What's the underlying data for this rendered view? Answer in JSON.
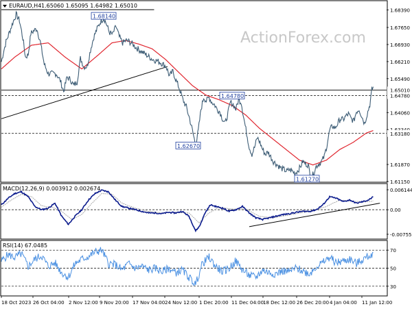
{
  "header": {
    "symbol_label": "EURAUD,H4",
    "ohlc_text": "1.65060 1.65095 1.64982 1.65010"
  },
  "watermark": "ActionForex.com",
  "colors": {
    "price": "#3b5b74",
    "ema": "#e0262f",
    "trendline": "#000000",
    "macd": "#0a1a8c",
    "signal": "#a8a8a8",
    "rsi": "#4a90e2",
    "label_box_border": "#1f3f9f",
    "label_text": "#1f3f9f",
    "grid": "#000000",
    "axis_text": "#000000"
  },
  "chart_data": [
    {
      "type": "line",
      "name": "price",
      "title": "EURAUD,H4",
      "y_ticks": [
        "1.68390",
        "1.67650",
        "1.66930",
        "1.66210",
        "1.65490",
        "1.64060",
        "1.63340",
        "1.61870",
        "1.61150"
      ],
      "ylim": [
        1.6115,
        1.6875
      ],
      "x_ticks": [
        "18 Oct 2023",
        "26 Oct 04:00",
        "2 Nov 12:00",
        "9 Nov 20:00",
        "17 Nov 04:00",
        "24 Nov 12:00",
        "1 Dec 20:00",
        "11 Dec 04:00",
        "18 Dec 12:00",
        "26 Dec 20:00",
        "4 Jan 04:00",
        "11 Jan 12:00"
      ],
      "price_labels": [
        {
          "text": "1.68140",
          "value": 1.6814
        },
        {
          "text": "1.64780",
          "value": 1.6478
        },
        {
          "text": "1.62670",
          "value": 1.6267
        },
        {
          "text": "1.61270",
          "value": 1.6127
        }
      ],
      "horizontal_levels": [
        {
          "text": "1.65010",
          "value": 1.6501,
          "style": "solid"
        },
        {
          "text": "1.64780",
          "value": 1.6478,
          "style": "dashed"
        },
        {
          "text": "1.63180",
          "value": 1.6318,
          "style": "dashed"
        }
      ],
      "price_anchors": [
        [
          0,
          1.662
        ],
        [
          3,
          1.666
        ],
        [
          7,
          1.6705
        ],
        [
          12,
          1.6745
        ],
        [
          17,
          1.6785
        ],
        [
          22,
          1.682
        ],
        [
          27,
          1.6795
        ],
        [
          32,
          1.672
        ],
        [
          36,
          1.664
        ],
        [
          40,
          1.665
        ],
        [
          44,
          1.674
        ],
        [
          48,
          1.675
        ],
        [
          53,
          1.676
        ],
        [
          58,
          1.6705
        ],
        [
          64,
          1.661
        ],
        [
          70,
          1.657
        ],
        [
          76,
          1.657
        ],
        [
          82,
          1.657
        ],
        [
          88,
          1.654
        ],
        [
          93,
          1.6495
        ],
        [
          98,
          1.6555
        ],
        [
          103,
          1.6545
        ],
        [
          108,
          1.652
        ],
        [
          113,
          1.6535
        ],
        [
          118,
          1.6635
        ],
        [
          123,
          1.66
        ],
        [
          128,
          1.66
        ],
        [
          133,
          1.667
        ],
        [
          138,
          1.6725
        ],
        [
          143,
          1.676
        ],
        [
          148,
          1.679
        ],
        [
          153,
          1.6805
        ],
        [
          157,
          1.6778
        ],
        [
          161,
          1.6745
        ],
        [
          166,
          1.6735
        ],
        [
          171,
          1.677
        ],
        [
          176,
          1.6725
        ],
        [
          181,
          1.67
        ],
        [
          186,
          1.671
        ],
        [
          191,
          1.6705
        ],
        [
          196,
          1.6695
        ],
        [
          201,
          1.668
        ],
        [
          206,
          1.667
        ],
        [
          211,
          1.666
        ],
        [
          216,
          1.665
        ],
        [
          221,
          1.664
        ],
        [
          226,
          1.663
        ],
        [
          231,
          1.6625
        ],
        [
          236,
          1.662
        ],
        [
          241,
          1.661
        ],
        [
          246,
          1.66
        ],
        [
          251,
          1.656
        ],
        [
          256,
          1.658
        ],
        [
          261,
          1.654
        ],
        [
          266,
          1.6505
        ],
        [
          271,
          1.646
        ],
        [
          276,
          1.643
        ],
        [
          281,
          1.638
        ],
        [
          286,
          1.632
        ],
        [
          290,
          1.6267
        ],
        [
          294,
          1.633
        ],
        [
          298,
          1.642
        ],
        [
          302,
          1.647
        ],
        [
          306,
          1.6455
        ],
        [
          310,
          1.647
        ],
        [
          314,
          1.645
        ],
        [
          318,
          1.644
        ],
        [
          322,
          1.642
        ],
        [
          326,
          1.641
        ],
        [
          330,
          1.638
        ],
        [
          334,
          1.636
        ],
        [
          338,
          1.64
        ],
        [
          342,
          1.645
        ],
        [
          346,
          1.644
        ],
        [
          350,
          1.642
        ],
        [
          354,
          1.646
        ],
        [
          358,
          1.645
        ],
        [
          362,
          1.638
        ],
        [
          366,
          1.632
        ],
        [
          370,
          1.626
        ],
        [
          374,
          1.623
        ],
        [
          378,
          1.626
        ],
        [
          382,
          1.63
        ],
        [
          386,
          1.628
        ],
        [
          390,
          1.625
        ],
        [
          394,
          1.623
        ],
        [
          398,
          1.624
        ],
        [
          402,
          1.622
        ],
        [
          406,
          1.62
        ],
        [
          410,
          1.619
        ],
        [
          414,
          1.618
        ],
        [
          418,
          1.617
        ],
        [
          422,
          1.6165
        ],
        [
          426,
          1.6158
        ],
        [
          430,
          1.6165
        ],
        [
          434,
          1.616
        ],
        [
          438,
          1.615
        ],
        [
          442,
          1.616
        ],
        [
          446,
          1.6175
        ],
        [
          450,
          1.62
        ],
        [
          454,
          1.619
        ],
        [
          458,
          1.6185
        ],
        [
          462,
          1.6127
        ],
        [
          466,
          1.615
        ],
        [
          470,
          1.618
        ],
        [
          474,
          1.619
        ],
        [
          478,
          1.62
        ],
        [
          482,
          1.622
        ],
        [
          486,
          1.627
        ],
        [
          490,
          1.633
        ],
        [
          494,
          1.635
        ],
        [
          498,
          1.634
        ],
        [
          502,
          1.636
        ],
        [
          506,
          1.638
        ],
        [
          510,
          1.6375
        ],
        [
          514,
          1.639
        ],
        [
          518,
          1.64
        ],
        [
          522,
          1.638
        ],
        [
          526,
          1.637
        ],
        [
          530,
          1.641
        ],
        [
          534,
          1.642
        ],
        [
          538,
          1.639
        ],
        [
          542,
          1.636
        ],
        [
          546,
          1.64
        ],
        [
          550,
          1.644
        ],
        [
          553,
          1.65
        ],
        [
          555,
          1.6515
        ]
      ],
      "ema_anchors": [
        [
          0,
          1.659
        ],
        [
          20,
          1.664
        ],
        [
          45,
          1.669
        ],
        [
          70,
          1.67
        ],
        [
          95,
          1.664
        ],
        [
          120,
          1.659
        ],
        [
          145,
          1.665
        ],
        [
          165,
          1.67
        ],
        [
          185,
          1.671
        ],
        [
          205,
          1.6695
        ],
        [
          225,
          1.6675
        ],
        [
          245,
          1.663
        ],
        [
          265,
          1.6575
        ],
        [
          285,
          1.652
        ],
        [
          305,
          1.648
        ],
        [
          325,
          1.646
        ],
        [
          345,
          1.6435
        ],
        [
          365,
          1.6395
        ],
        [
          385,
          1.634
        ],
        [
          405,
          1.6295
        ],
        [
          425,
          1.625
        ],
        [
          445,
          1.6205
        ],
        [
          465,
          1.6185
        ],
        [
          485,
          1.6205
        ],
        [
          505,
          1.625
        ],
        [
          525,
          1.628
        ],
        [
          545,
          1.632
        ],
        [
          555,
          1.633
        ]
      ],
      "trendlines": [
        {
          "x1": 0,
          "y1": 1.638,
          "x2": 248,
          "y2": 1.66
        },
        {
          "x1": 0,
          "y1": 1.684,
          "x2": 228,
          "y2": 1.684
        }
      ]
    },
    {
      "type": "line",
      "name": "MACD",
      "title": "MACD(12,26,9) 0.003912 0.002674",
      "y_ticks": [
        "0.006144",
        "0.00",
        "-0.007555"
      ],
      "ylim": [
        -0.007555,
        0.006144
      ],
      "zero_line": 0.0,
      "macd_anchors": [
        [
          0,
          0.0015
        ],
        [
          10,
          0.0035
        ],
        [
          20,
          0.005
        ],
        [
          30,
          0.0055
        ],
        [
          40,
          0.004
        ],
        [
          50,
          0.001
        ],
        [
          60,
          0.0
        ],
        [
          70,
          0.0005
        ],
        [
          80,
          0.002
        ],
        [
          90,
          -0.002
        ],
        [
          100,
          -0.0045
        ],
        [
          110,
          -0.002
        ],
        [
          120,
          0.0
        ],
        [
          130,
          0.003
        ],
        [
          140,
          0.005
        ],
        [
          150,
          0.006
        ],
        [
          160,
          0.0055
        ],
        [
          170,
          0.003
        ],
        [
          180,
          0.001
        ],
        [
          190,
          0.0005
        ],
        [
          200,
          0.0
        ],
        [
          210,
          -0.0005
        ],
        [
          220,
          -0.001
        ],
        [
          230,
          -0.001
        ],
        [
          240,
          -0.0012
        ],
        [
          250,
          -0.0008
        ],
        [
          260,
          -0.001
        ],
        [
          270,
          -0.0005
        ],
        [
          280,
          -0.002
        ],
        [
          290,
          -0.0065
        ],
        [
          296,
          -0.005
        ],
        [
          304,
          -0.001
        ],
        [
          312,
          0.0015
        ],
        [
          320,
          0.001
        ],
        [
          330,
          0.0005
        ],
        [
          340,
          -0.0005
        ],
        [
          350,
          0.0
        ],
        [
          360,
          0.001
        ],
        [
          370,
          -0.001
        ],
        [
          380,
          -0.0025
        ],
        [
          390,
          -0.003
        ],
        [
          400,
          -0.0025
        ],
        [
          410,
          -0.002
        ],
        [
          420,
          -0.0015
        ],
        [
          430,
          -0.0012
        ],
        [
          440,
          -0.0008
        ],
        [
          450,
          -0.0005
        ],
        [
          460,
          -0.0005
        ],
        [
          470,
          0.0
        ],
        [
          480,
          0.0015
        ],
        [
          490,
          0.004
        ],
        [
          500,
          0.0035
        ],
        [
          510,
          0.0025
        ],
        [
          520,
          0.003
        ],
        [
          530,
          0.002
        ],
        [
          540,
          0.0025
        ],
        [
          548,
          0.003
        ],
        [
          555,
          0.0039
        ]
      ],
      "signal_anchors": [
        [
          0,
          0.0008
        ],
        [
          15,
          0.003
        ],
        [
          30,
          0.0048
        ],
        [
          45,
          0.004
        ],
        [
          60,
          0.0012
        ],
        [
          75,
          0.0008
        ],
        [
          90,
          -0.0005
        ],
        [
          105,
          -0.003
        ],
        [
          120,
          -0.0015
        ],
        [
          135,
          0.002
        ],
        [
          150,
          0.005
        ],
        [
          165,
          0.0048
        ],
        [
          180,
          0.002
        ],
        [
          200,
          0.0005
        ],
        [
          220,
          -0.0005
        ],
        [
          240,
          -0.001
        ],
        [
          260,
          -0.0008
        ],
        [
          280,
          -0.001
        ],
        [
          295,
          -0.004
        ],
        [
          310,
          -0.001
        ],
        [
          325,
          0.0008
        ],
        [
          345,
          0.0002
        ],
        [
          365,
          0.0002
        ],
        [
          385,
          -0.002
        ],
        [
          405,
          -0.0025
        ],
        [
          425,
          -0.0018
        ],
        [
          445,
          -0.001
        ],
        [
          465,
          -0.0004
        ],
        [
          485,
          0.001
        ],
        [
          505,
          0.003
        ],
        [
          525,
          0.0026
        ],
        [
          545,
          0.0024
        ],
        [
          555,
          0.0027
        ]
      ],
      "trendlines": [
        {
          "x1": 370,
          "y1": -0.0052,
          "x2": 565,
          "y2": 0.002
        }
      ]
    },
    {
      "type": "line",
      "name": "RSI",
      "title": "RSI(14) 67.0485",
      "y_ticks": [
        "70",
        "50",
        "30"
      ],
      "ylim": [
        20,
        80
      ],
      "levels": [
        70,
        50,
        30
      ],
      "rsi_anchors": [
        [
          0,
          58
        ],
        [
          10,
          65
        ],
        [
          20,
          62
        ],
        [
          30,
          66
        ],
        [
          40,
          52
        ],
        [
          50,
          60
        ],
        [
          60,
          64
        ],
        [
          70,
          52
        ],
        [
          80,
          56
        ],
        [
          90,
          45
        ],
        [
          100,
          40
        ],
        [
          110,
          55
        ],
        [
          120,
          60
        ],
        [
          130,
          63
        ],
        [
          140,
          68
        ],
        [
          150,
          70
        ],
        [
          160,
          55
        ],
        [
          170,
          54
        ],
        [
          180,
          48
        ],
        [
          190,
          55
        ],
        [
          200,
          50
        ],
        [
          210,
          52
        ],
        [
          220,
          48
        ],
        [
          230,
          50
        ],
        [
          240,
          46
        ],
        [
          250,
          50
        ],
        [
          260,
          45
        ],
        [
          270,
          48
        ],
        [
          280,
          40
        ],
        [
          290,
          32
        ],
        [
          300,
          55
        ],
        [
          310,
          62
        ],
        [
          320,
          52
        ],
        [
          330,
          46
        ],
        [
          340,
          50
        ],
        [
          350,
          58
        ],
        [
          360,
          48
        ],
        [
          370,
          42
        ],
        [
          380,
          40
        ],
        [
          390,
          48
        ],
        [
          400,
          45
        ],
        [
          410,
          44
        ],
        [
          420,
          47
        ],
        [
          430,
          46
        ],
        [
          440,
          50
        ],
        [
          450,
          47
        ],
        [
          460,
          44
        ],
        [
          470,
          52
        ],
        [
          480,
          56
        ],
        [
          490,
          62
        ],
        [
          500,
          56
        ],
        [
          510,
          58
        ],
        [
          520,
          60
        ],
        [
          530,
          55
        ],
        [
          540,
          60
        ],
        [
          550,
          64
        ],
        [
          555,
          67
        ]
      ]
    }
  ]
}
